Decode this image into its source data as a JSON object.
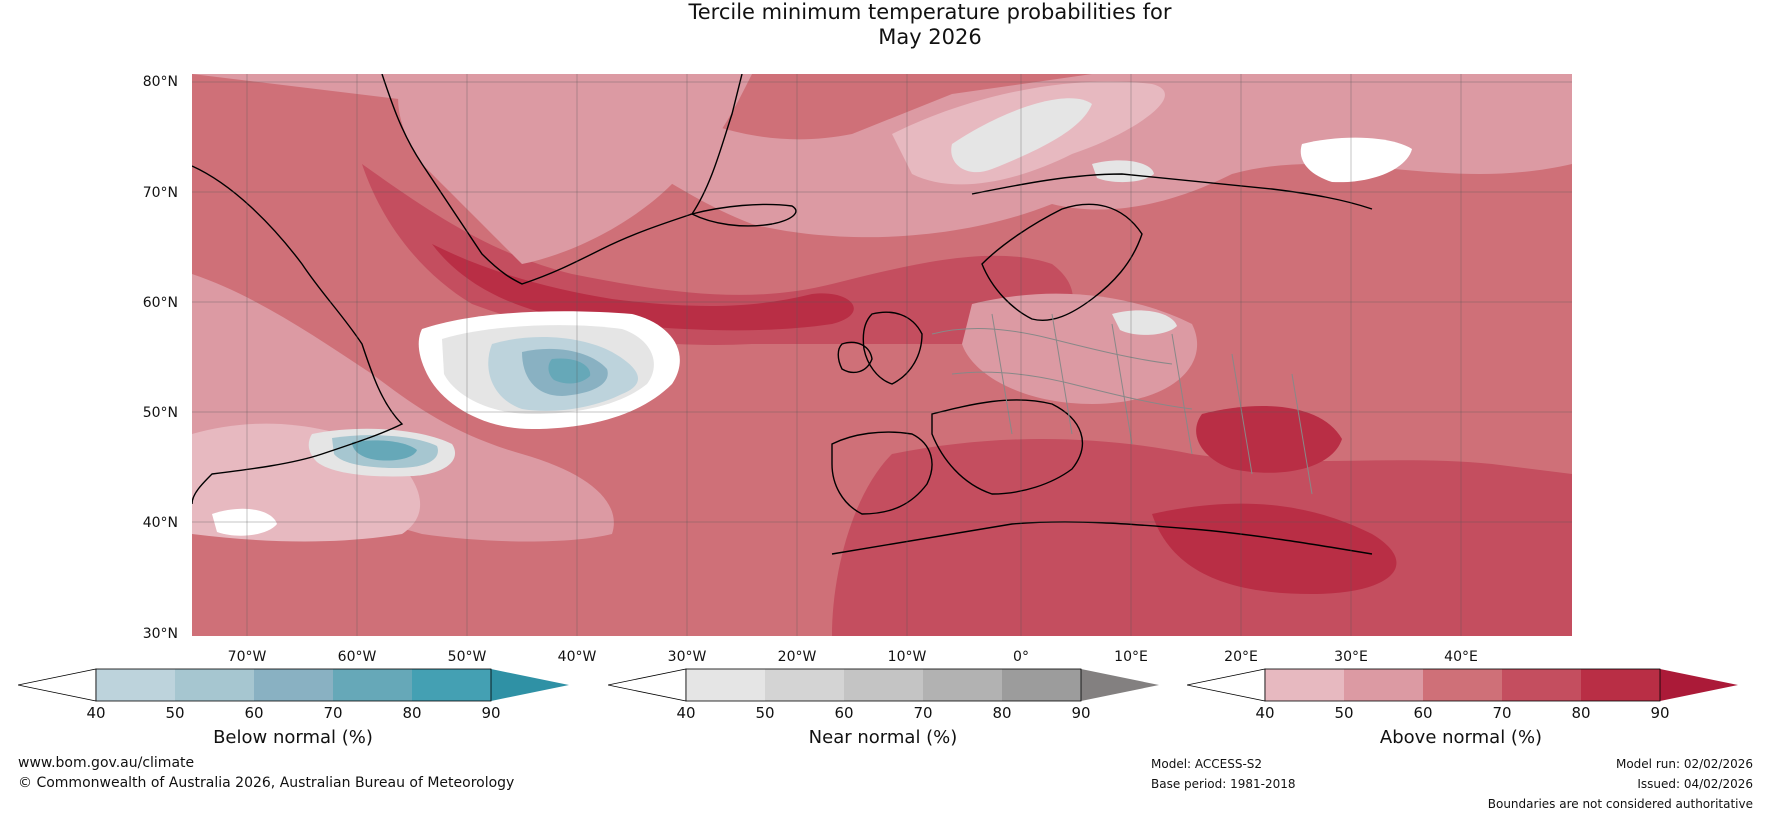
{
  "title": {
    "line1": "Tercile minimum temperature probabilities for",
    "line2": "May 2026"
  },
  "map": {
    "description_icon": "forecast-map",
    "lat_labels": [
      "80°N",
      "70°N",
      "60°N",
      "50°N",
      "40°N",
      "30°N"
    ],
    "lon_labels": [
      "70°W",
      "60°W",
      "50°W",
      "40°W",
      "30°W",
      "20°W",
      "10°W",
      "0°",
      "10°E",
      "20°E",
      "30°E",
      "40°E"
    ]
  },
  "colorbars": [
    {
      "label": "Below normal (%)",
      "ticks": [
        "40",
        "50",
        "60",
        "70",
        "80",
        "90"
      ],
      "colors": [
        "#ffffff",
        "#bdd3dc",
        "#a6c6d0",
        "#89b1c2",
        "#66a8b8",
        "#44a0b3",
        "#2f91a5"
      ]
    },
    {
      "label": "Near normal (%)",
      "ticks": [
        "40",
        "50",
        "60",
        "70",
        "80",
        "90"
      ],
      "colors": [
        "#ffffff",
        "#e5e5e5",
        "#d4d4d4",
        "#c4c4c4",
        "#b2b2b2",
        "#9c9c9c",
        "#838080"
      ]
    },
    {
      "label": "Above normal (%)",
      "ticks": [
        "40",
        "50",
        "60",
        "70",
        "80",
        "90"
      ],
      "colors": [
        "#ffffff",
        "#e7b9c0",
        "#dc9aa3",
        "#cf7078",
        "#c44e5f",
        "#b92e45",
        "#ab1a38"
      ]
    }
  ],
  "footer": {
    "website": "www.bom.gov.au/climate",
    "copyright": "© Commonwealth of Australia 2026, Australian Bureau of Meteorology",
    "model": "Model: ACCESS-S2",
    "base_period": "Base period: 1981-2018",
    "model_run": "Model run: 02/02/2026",
    "issued": "Issued: 04/02/2026",
    "disclaimer": "Boundaries are not considered authoritative"
  }
}
